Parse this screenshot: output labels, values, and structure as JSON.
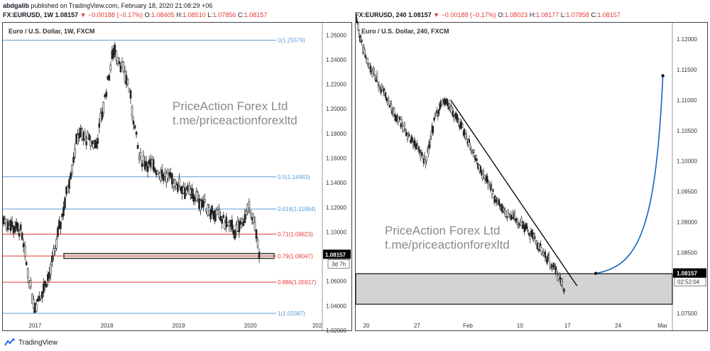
{
  "header": {
    "author": "abdgalib",
    "published": "published on TradingView.com, February 18, 2020 21:08:29 +06"
  },
  "left": {
    "symbol": "FX:EURUSD, 1W",
    "last": "1.08157",
    "change": "−0.00188 (−0.17%)",
    "o_label": "O:",
    "o": "1.08405",
    "h_label": "H:",
    "h": "1.08510",
    "l_label": "L:",
    "l": "1.07856",
    "c_label": "C:",
    "c": "1.08157",
    "title": "Euro / U.S. Dollar, 1W, FXCM",
    "watermark_line1": "PriceAction Forex Ltd",
    "watermark_line2": "t.me/priceactionforexltd",
    "price_tag": "1.08157",
    "countdown": "3d 7h"
  },
  "right": {
    "symbol": "FX:EURUSD, 240",
    "last": "1.08157",
    "change": "−0.00188 (−0.17%)",
    "o_label": "O:",
    "o": "1.08023",
    "h_label": "H:",
    "h": "1.08177",
    "l_label": "L:",
    "l": "1.07858",
    "c_label": "C:",
    "c": "1.08157",
    "title": "Euro / U.S. Dollar, 240, FXCM",
    "watermark_line1": "PriceAction Forex Ltd",
    "watermark_line2": "t.me/priceactionforexltd",
    "price_tag": "1.08157",
    "countdown": "02:52:04"
  },
  "footer": {
    "brand": "TradingView"
  },
  "colors": {
    "blue": "#5b9bd5",
    "red": "#e53935",
    "candle": "#222222",
    "curve": "#1565c0"
  },
  "chart_data": [
    {
      "type": "candlestick",
      "title": "Euro / U.S. Dollar, 1W, FXCM",
      "ylim": [
        1.02,
        1.27
      ],
      "y_ticks": [
        "1.26000",
        "1.24000",
        "1.22000",
        "1.20000",
        "1.18000",
        "1.16000",
        "1.14000",
        "1.12000",
        "1.10000",
        "1.08000",
        "1.06000",
        "1.04000",
        "1.02000"
      ],
      "x_ticks": [
        "2017",
        "2018",
        "2019",
        "2020",
        "202"
      ],
      "price_path": [
        {
          "x": 2016.55,
          "y": 1.11
        },
        {
          "x": 2016.8,
          "y": 1.1
        },
        {
          "x": 2016.95,
          "y": 1.05
        },
        {
          "x": 2017.0,
          "y": 1.04
        },
        {
          "x": 2017.2,
          "y": 1.065
        },
        {
          "x": 2017.4,
          "y": 1.12
        },
        {
          "x": 2017.6,
          "y": 1.18
        },
        {
          "x": 2017.85,
          "y": 1.17
        },
        {
          "x": 2018.1,
          "y": 1.25
        },
        {
          "x": 2018.3,
          "y": 1.22
        },
        {
          "x": 2018.45,
          "y": 1.16
        },
        {
          "x": 2018.7,
          "y": 1.15
        },
        {
          "x": 2018.95,
          "y": 1.14
        },
        {
          "x": 2019.3,
          "y": 1.125
        },
        {
          "x": 2019.6,
          "y": 1.11
        },
        {
          "x": 2019.8,
          "y": 1.1
        },
        {
          "x": 2020.0,
          "y": 1.12
        },
        {
          "x": 2020.13,
          "y": 1.0816
        }
      ],
      "fib_levels": [
        {
          "label": "0(1.25579)",
          "value": 1.25579,
          "color": "blue"
        },
        {
          "label": "0.5(1.14483)",
          "value": 1.14483,
          "color": "blue"
        },
        {
          "label": "0.618(1.11864)",
          "value": 1.11864,
          "color": "blue"
        },
        {
          "label": "0.71(1.09823)",
          "value": 1.09823,
          "color": "red"
        },
        {
          "label": "0.79(1.08047)",
          "value": 1.08047,
          "color": "red"
        },
        {
          "label": "0.886(1.05917)",
          "value": 1.05917,
          "color": "red"
        },
        {
          "label": "1(1.03387)",
          "value": 1.03387,
          "color": "blue"
        }
      ],
      "zone": {
        "from": 1.0785,
        "to": 1.0825
      }
    },
    {
      "type": "candlestick",
      "title": "Euro / U.S. Dollar, 240, FXCM",
      "ylim": [
        1.075,
        1.122
      ],
      "y_ticks": [
        "1.12000",
        "1.11500",
        "1.11000",
        "1.10500",
        "1.10000",
        "1.09500",
        "1.09000",
        "1.08500",
        "1.08000",
        "1.07500"
      ],
      "x_ticks": [
        "20",
        "27",
        "Feb",
        "10",
        "17",
        "24",
        "Mar"
      ],
      "price_path": [
        {
          "x": 0,
          "y": 1.1235
        },
        {
          "x": 0.03,
          "y": 1.117
        },
        {
          "x": 0.08,
          "y": 1.112
        },
        {
          "x": 0.12,
          "y": 1.108
        },
        {
          "x": 0.17,
          "y": 1.104
        },
        {
          "x": 0.22,
          "y": 1.1
        },
        {
          "x": 0.25,
          "y": 1.107
        },
        {
          "x": 0.28,
          "y": 1.11
        },
        {
          "x": 0.34,
          "y": 1.105
        },
        {
          "x": 0.4,
          "y": 1.098
        },
        {
          "x": 0.46,
          "y": 1.092
        },
        {
          "x": 0.52,
          "y": 1.09
        },
        {
          "x": 0.58,
          "y": 1.086
        },
        {
          "x": 0.63,
          "y": 1.082
        },
        {
          "x": 0.66,
          "y": 1.079
        }
      ],
      "trendline": {
        "from": {
          "x": 0.3,
          "y": 1.11
        },
        "to": {
          "x": 0.699,
          "y": 1.0795
        }
      },
      "zone": {
        "from": 1.0765,
        "to": 1.0815
      },
      "projection_end": {
        "x": 0.97,
        "y": 1.114
      }
    }
  ]
}
